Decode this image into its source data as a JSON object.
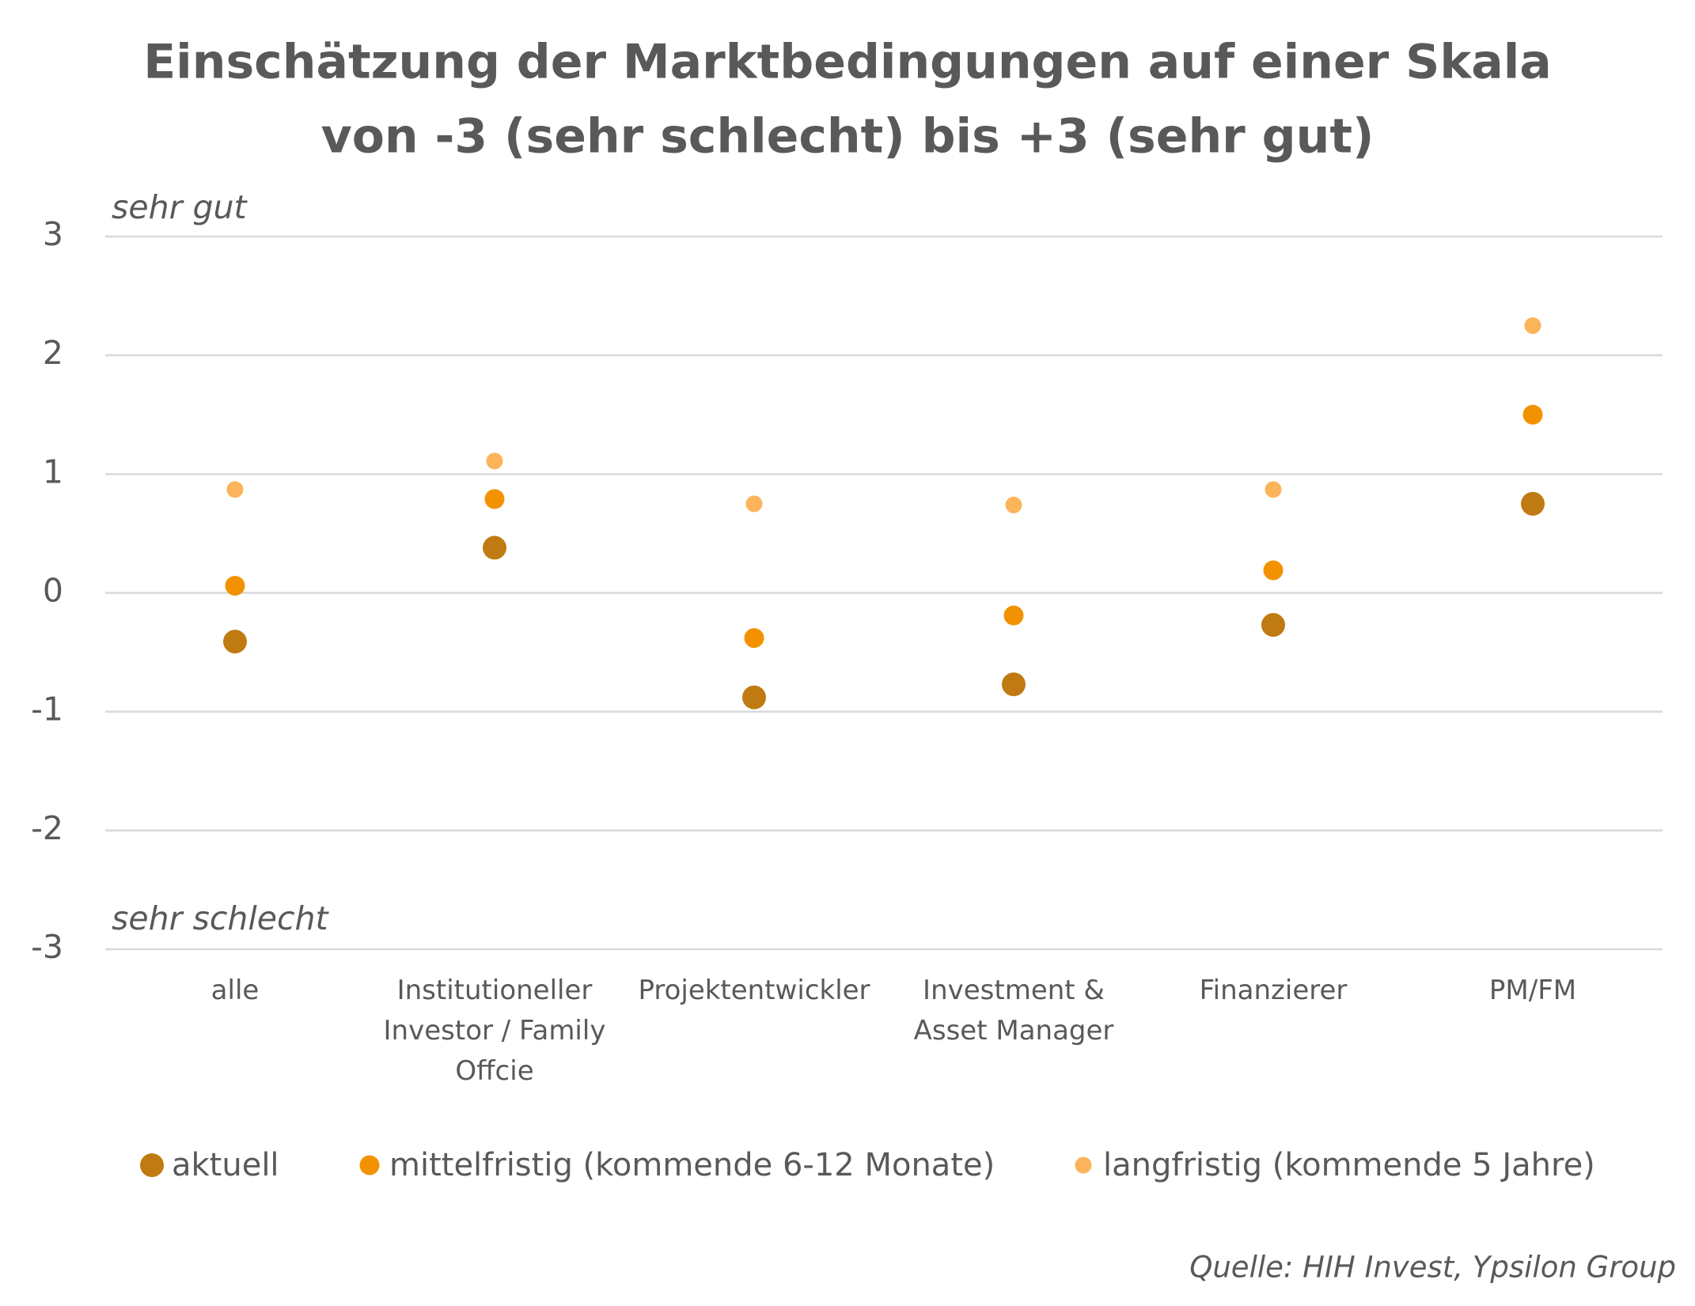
{
  "chart_data": {
    "type": "scatter",
    "title": "Einschätzung der Marktbedingungen auf einer Skala",
    "subtitle": "von -3 (sehr schlecht) bis +3 (sehr gut)",
    "annotations": [
      "sehr gut",
      "sehr schlecht"
    ],
    "source": "Quelle: HIH Invest, Ypsilon Group",
    "categories": [
      "alle",
      "Institutioneller Investor / Family Offcie",
      "Projektentwickler",
      "Investment & Asset Manager",
      "Finanzierer",
      "PM/FM"
    ],
    "series": [
      {
        "name": "aktuell",
        "color": "#c07a12",
        "values": [
          -0.41,
          0.38,
          -0.88,
          -0.77,
          -0.27,
          0.75
        ]
      },
      {
        "name": "mittelfristig (kommende 6-12 Monate)",
        "color": "#f39200",
        "values": [
          0.06,
          0.79,
          -0.38,
          -0.19,
          0.19,
          1.5
        ]
      },
      {
        "name": "langfristig (kommende 5 Jahre)",
        "color": "#fbb45a",
        "values": [
          0.87,
          1.11,
          0.75,
          0.74,
          0.87,
          2.25
        ]
      }
    ],
    "ylim": [
      -3,
      3
    ],
    "yticks": [
      -3,
      -2,
      -1,
      0,
      1,
      2,
      3
    ],
    "grid": true,
    "legend": "bottom"
  }
}
